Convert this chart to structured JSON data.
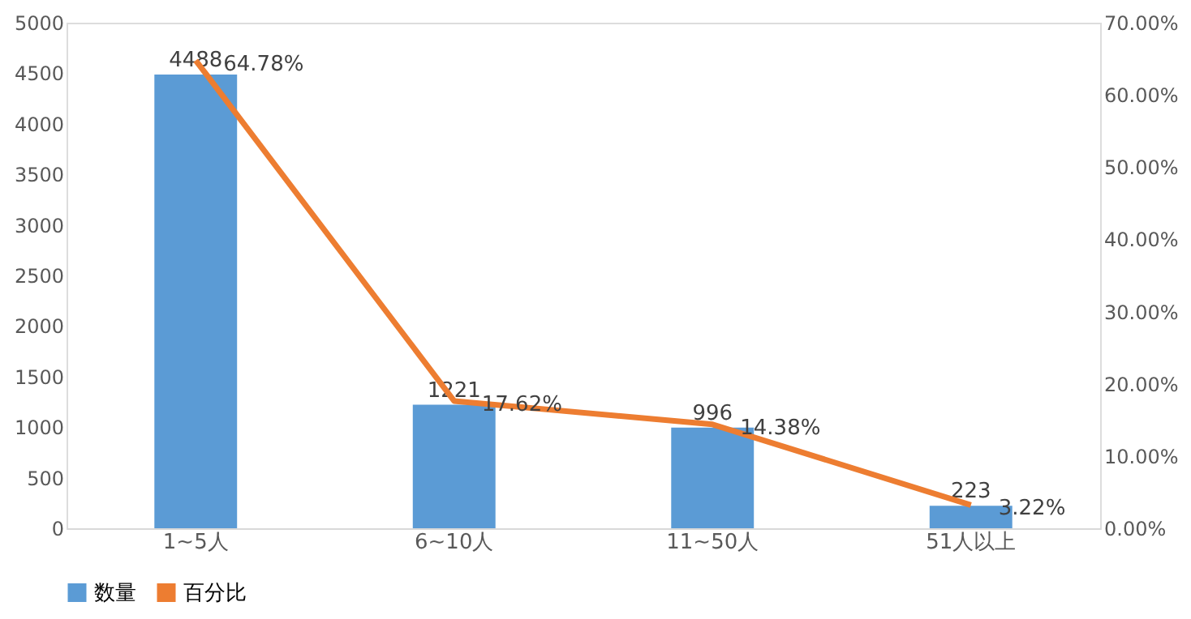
{
  "chart_data": {
    "type": "bar",
    "categories": [
      "1~5人",
      "6~10人",
      "11~50人",
      "51人以上"
    ],
    "series": [
      {
        "name": "数量",
        "color": "#5b9bd5",
        "values": [
          4488,
          1221,
          996,
          223
        ],
        "value_labels": [
          "4488",
          "1221",
          "996",
          "223"
        ]
      },
      {
        "name": "百分比",
        "type": "line",
        "axis": "y2",
        "color": "#ed7d31",
        "values": [
          64.78,
          17.62,
          14.38,
          3.22
        ],
        "value_labels": [
          "64.78%",
          "17.62%",
          "14.38%",
          "3.22%"
        ]
      }
    ],
    "ylim": [
      0,
      5000
    ],
    "yticks": [
      0,
      500,
      1000,
      1500,
      2000,
      2500,
      3000,
      3500,
      4000,
      4500,
      5000
    ],
    "y2lim": [
      0,
      70
    ],
    "y2ticks": [
      {
        "value": 0,
        "label": "0.00%"
      },
      {
        "value": 10,
        "label": "10.00%"
      },
      {
        "value": 20,
        "label": "20.00%"
      },
      {
        "value": 30,
        "label": "30.00%"
      },
      {
        "value": 40,
        "label": "40.00%"
      },
      {
        "value": 50,
        "label": "50.00%"
      },
      {
        "value": 60,
        "label": "60.00%"
      },
      {
        "value": 70,
        "label": "70.00%"
      }
    ],
    "grid": false,
    "legend": "bottom",
    "marker": "none",
    "line_style": "solid"
  }
}
